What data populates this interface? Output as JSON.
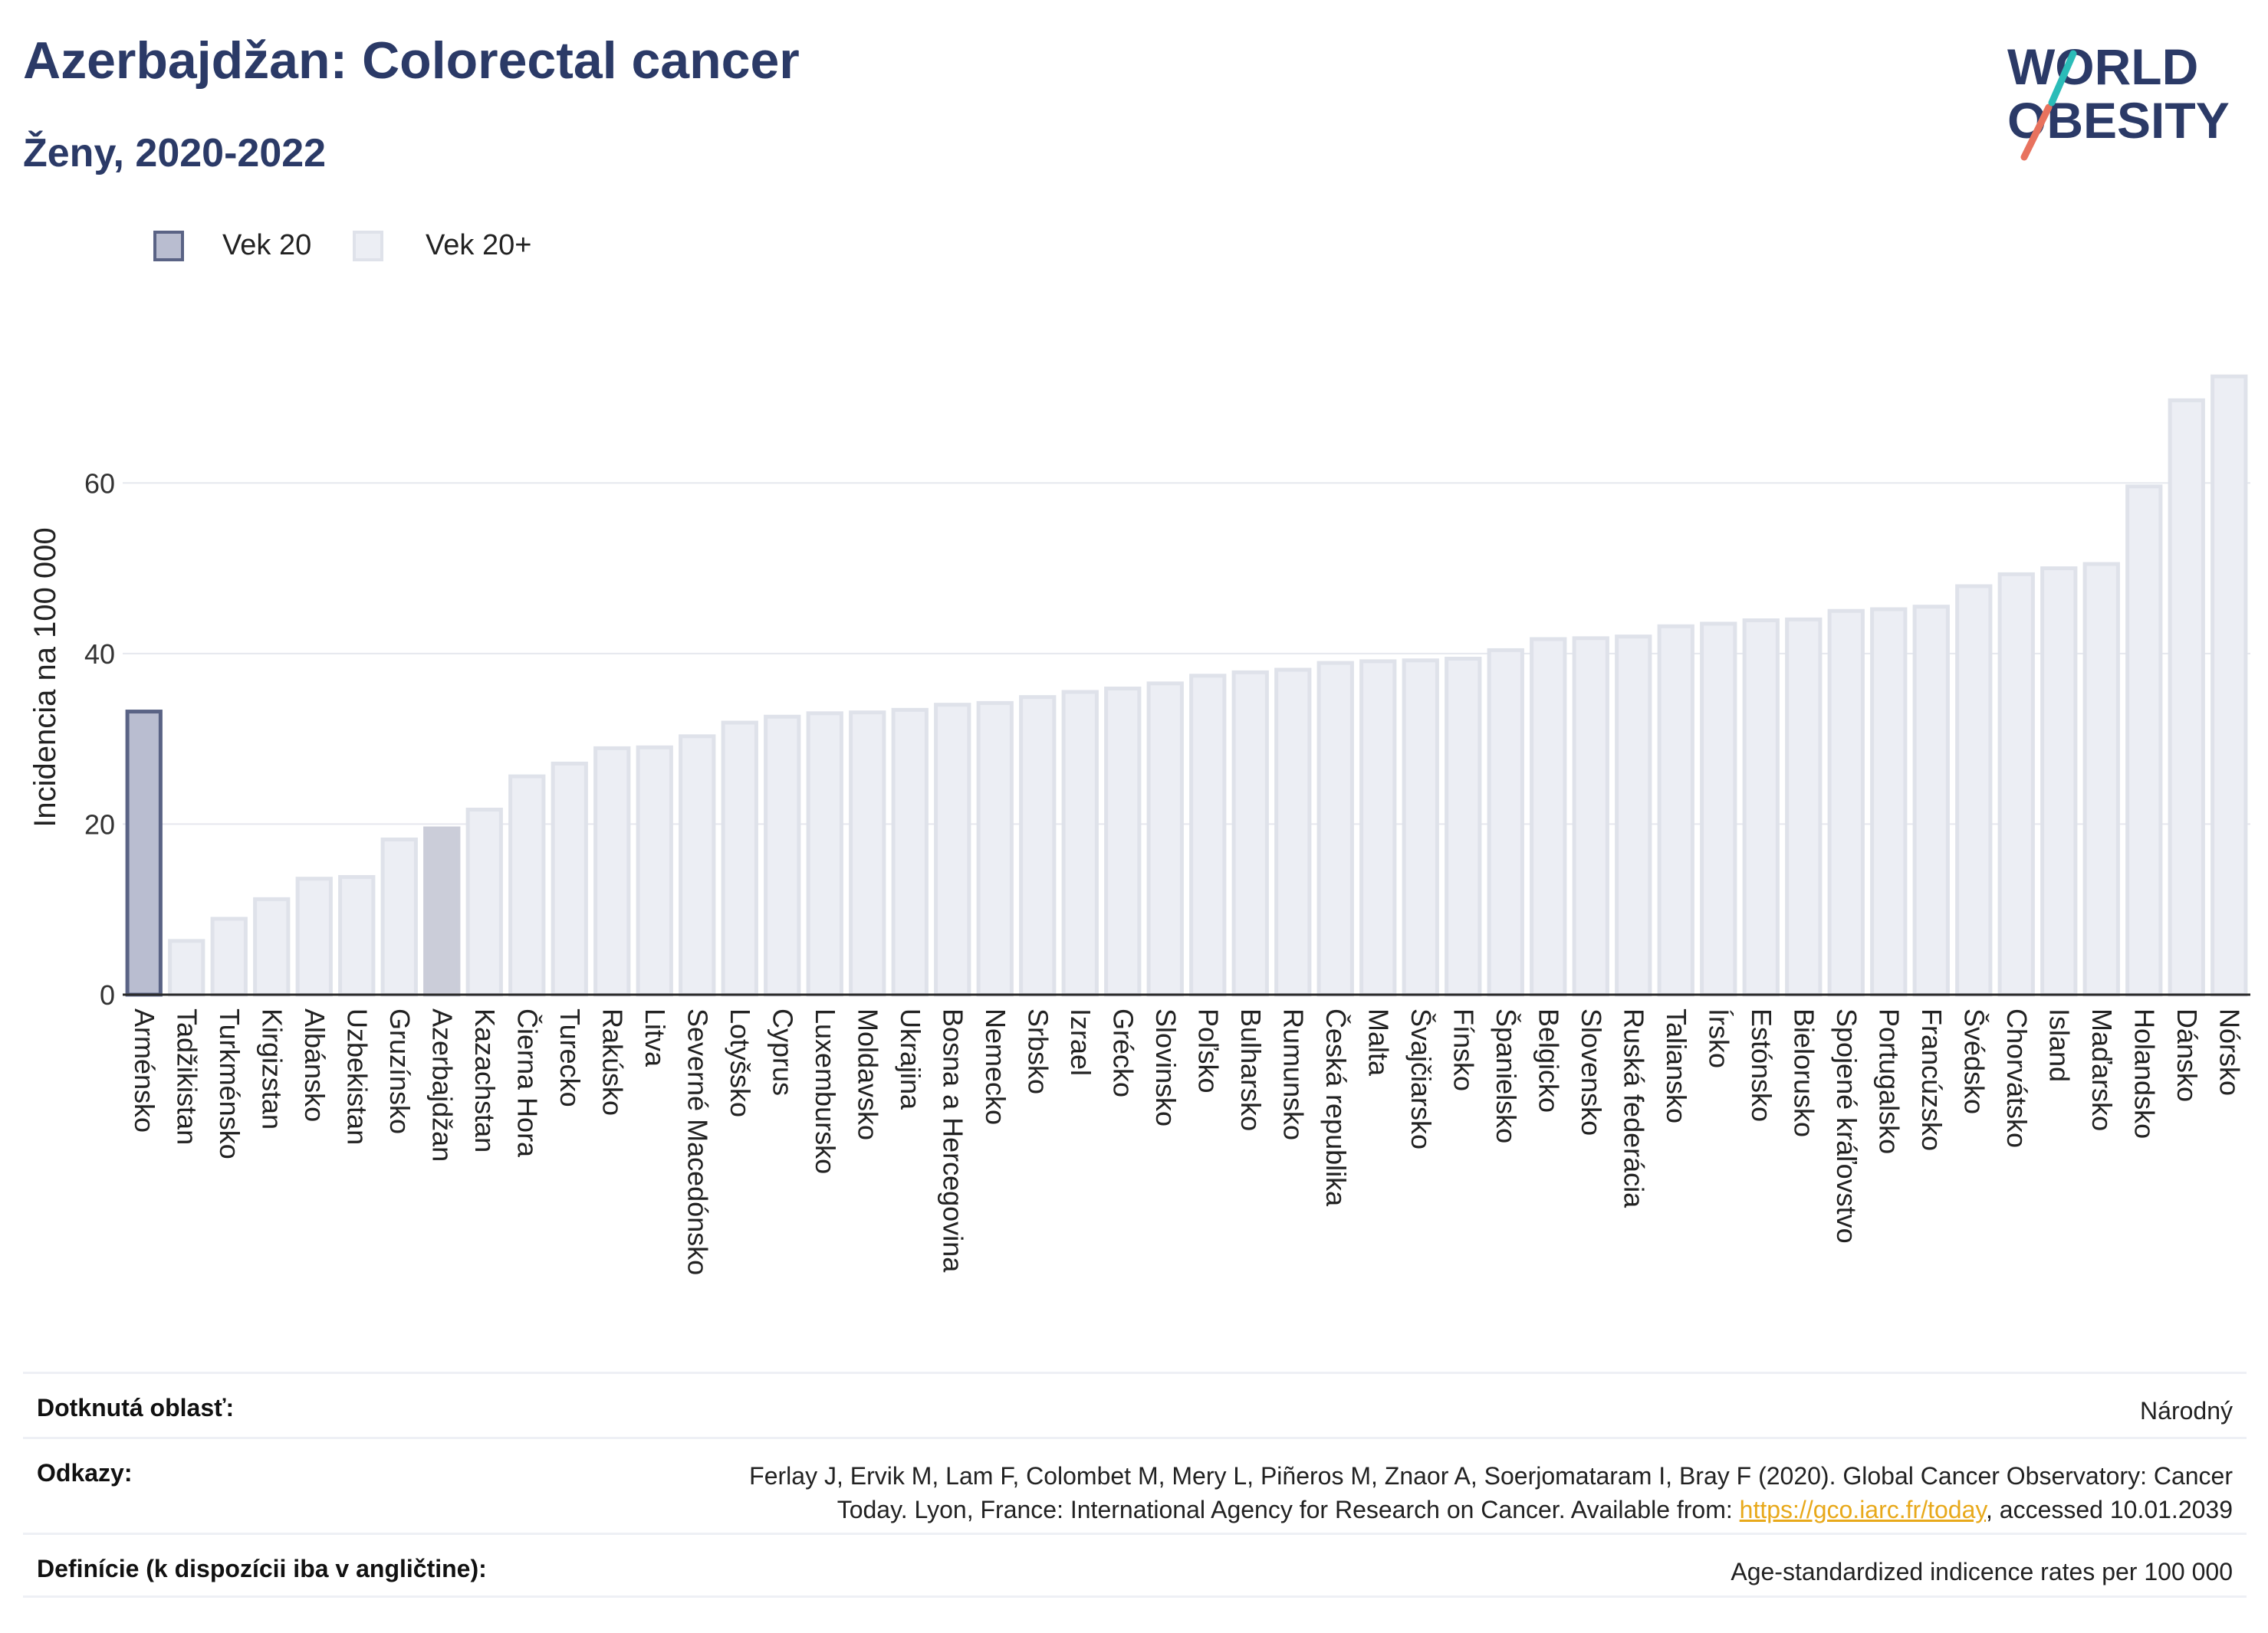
{
  "header": {
    "title": "Azerbajdžan: Colorectal cancer",
    "subtitle": "Ženy, 2020-2022"
  },
  "logo": {
    "line1": "WORLD",
    "line2": "OBESITY"
  },
  "legend": [
    {
      "label": "Vek 20",
      "color": "#b9bdd0",
      "border": "#5a6385"
    },
    {
      "label": "Vek 20+",
      "color": "#eceef4",
      "border": "#dfe2ea"
    }
  ],
  "chart_data": {
    "type": "bar",
    "ylabel": "Incidencia na 100 000",
    "xlabel": "",
    "ylim": [
      0,
      78
    ],
    "yticks": [
      0,
      20,
      40,
      60
    ],
    "grid": true,
    "legend_position": "top-left",
    "categories": [
      "Arménsko",
      "Tadžikistan",
      "Turkménsko",
      "Kirgizstan",
      "Albánsko",
      "Uzbekistan",
      "Gruzínsko",
      "Azerbajdžan",
      "Kazachstan",
      "Čierna Hora",
      "Turecko",
      "Rakúsko",
      "Litva",
      "Severné Macedónsko",
      "Lotyšsko",
      "Cyprus",
      "Luxembursko",
      "Moldavsko",
      "Ukrajina",
      "Bosna a Hercegovina",
      "Nemecko",
      "Srbsko",
      "Izrael",
      "Grécko",
      "Slovinsko",
      "Poľsko",
      "Bulharsko",
      "Rumunsko",
      "Česká republika",
      "Malta",
      "Švajčiarsko",
      "Fínsko",
      "Španielsko",
      "Belgicko",
      "Slovensko",
      "Ruská federácia",
      "Taliansko",
      "Írsko",
      "Estónsko",
      "Bielorusko",
      "Spojené kráľovstvo",
      "Portugalsko",
      "Francúzsko",
      "Švédsko",
      "Chorvátsko",
      "Island",
      "Maďarsko",
      "Holandsko",
      "Dánsko",
      "Nórsko"
    ],
    "values": [
      33.2,
      6.3,
      8.9,
      11.2,
      13.6,
      13.8,
      18.2,
      19.5,
      21.7,
      25.6,
      27.1,
      28.9,
      29.0,
      30.3,
      31.9,
      32.6,
      33.0,
      33.1,
      33.4,
      34.0,
      34.2,
      34.9,
      35.5,
      35.9,
      36.5,
      37.4,
      37.8,
      38.1,
      38.9,
      39.1,
      39.2,
      39.4,
      40.4,
      41.7,
      41.8,
      42.0,
      43.2,
      43.5,
      43.9,
      44.0,
      45.0,
      45.2,
      45.5,
      47.9,
      49.3,
      50.0,
      50.5,
      59.6,
      69.7,
      72.5
    ],
    "highlight": [
      {
        "category": "Arménsko",
        "series": "Vek 20"
      },
      {
        "category": "Azerbajdžan",
        "series": "current"
      }
    ],
    "colors": {
      "vek20_fill": "#b9bdd0",
      "vek20_border": "#5a6385",
      "current_fill": "#cbcdd9",
      "default_fill": "#eceef4",
      "default_border": "#dfe2ea",
      "grid": "#e6e8ee",
      "axis": "#2b2b2b"
    }
  },
  "footer": {
    "area_label": "Dotknutá oblasť:",
    "area_value": "Národný",
    "refs_label": "Odkazy:",
    "refs_line1": "Ferlay J, Ervik M, Lam F, Colombet M, Mery L, Piñeros M, Znaor A, Soerjomataram I, Bray F (2020). Global Cancer Observatory: Cancer",
    "refs_line2_pre": "Today. Lyon, France: International Agency for Research on Cancer. Available from: ",
    "refs_link": "https://gco.iarc.fr/today",
    "refs_line2_post": ", accessed 10.01.2039",
    "def_label": "Definície (k dispozícii iba v angličtine):",
    "def_value": "Age-standardized indicence rates per 100 000"
  }
}
